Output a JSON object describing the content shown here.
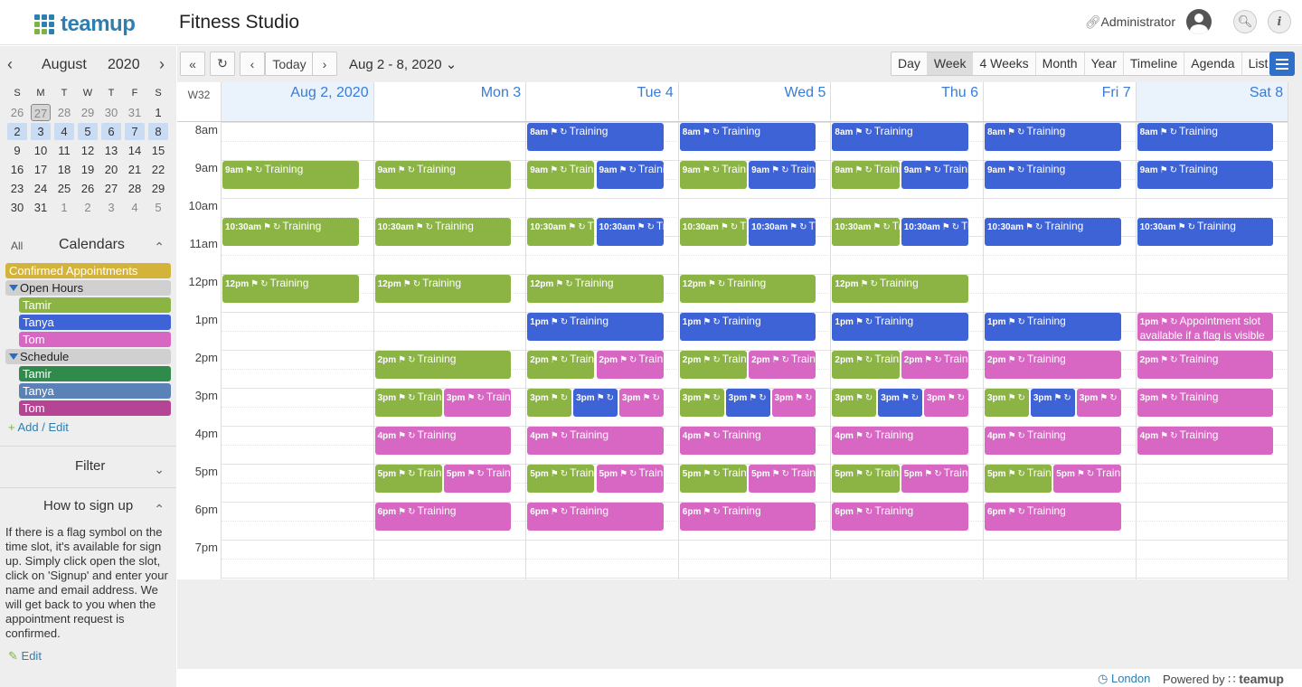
{
  "header": {
    "logo_text": "teamup",
    "app_title": "Fitness Studio",
    "user_label": "Administrator"
  },
  "minical": {
    "month": "August",
    "year": "2020",
    "dow": [
      "S",
      "M",
      "T",
      "W",
      "T",
      "F",
      "S"
    ],
    "weeks": [
      [
        "26",
        "27",
        "28",
        "29",
        "30",
        "31",
        "1"
      ],
      [
        "2",
        "3",
        "4",
        "5",
        "6",
        "7",
        "8"
      ],
      [
        "9",
        "10",
        "11",
        "12",
        "13",
        "14",
        "15"
      ],
      [
        "16",
        "17",
        "18",
        "19",
        "20",
        "21",
        "22"
      ],
      [
        "23",
        "24",
        "25",
        "26",
        "27",
        "28",
        "29"
      ],
      [
        "30",
        "31",
        "1",
        "2",
        "3",
        "4",
        "5"
      ]
    ]
  },
  "sidebar": {
    "all_label": "All",
    "calendars_title": "Calendars",
    "calendars": [
      {
        "label": "Confirmed Appointments",
        "color": "#d4b33a",
        "type": "cal"
      },
      {
        "label": "Open Hours",
        "type": "group"
      },
      {
        "label": "Tamir",
        "color": "#8bb444",
        "type": "sub"
      },
      {
        "label": "Tanya",
        "color": "#3d63d6",
        "type": "sub"
      },
      {
        "label": "Tom",
        "color": "#d866c3",
        "type": "sub"
      },
      {
        "label": "Schedule",
        "type": "group"
      },
      {
        "label": "Tamir",
        "color": "#2f8a4c",
        "type": "sub"
      },
      {
        "label": "Tanya",
        "color": "#5a82b6",
        "type": "sub"
      },
      {
        "label": "Tom",
        "color": "#b54494",
        "type": "sub"
      }
    ],
    "add_edit": "Add / Edit",
    "filter_title": "Filter",
    "signup_title": "How to sign up",
    "signup_text": "If there is a flag symbol on the time slot, it's available for sign up. Simply click open the slot, click on 'Signup' and enter your name and email address. We will get back to you when the appointment request is confirmed.",
    "edit_label": "Edit"
  },
  "toolbar": {
    "today": "Today",
    "date_range": "Aug 2 - 8, 2020",
    "views": [
      "Day",
      "Week",
      "4 Weeks",
      "Month",
      "Year",
      "Timeline",
      "Agenda",
      "List"
    ],
    "active_view": "Week"
  },
  "week": {
    "week_label": "W32",
    "days": [
      "Aug 2, 2020",
      "Mon 3",
      "Tue 4",
      "Wed 5",
      "Thu 6",
      "Fri 7",
      "Sat 8"
    ],
    "hours": [
      "8am",
      "9am",
      "10am",
      "11am",
      "12pm",
      "1pm",
      "2pm",
      "3pm",
      "4pm",
      "5pm",
      "6pm",
      "7pm"
    ]
  },
  "colors": {
    "green": "#8bb444",
    "blue": "#3d63d6",
    "pink": "#d866c3",
    "accent": "#2f6fc9"
  },
  "events": [
    {
      "day": 0,
      "start": 9,
      "end": 9.75,
      "col": 0,
      "cols": 1,
      "time": "9am",
      "title": "Training",
      "color": "green"
    },
    {
      "day": 0,
      "start": 10.5,
      "end": 11.25,
      "col": 0,
      "cols": 1,
      "time": "10:30am",
      "title": "Training",
      "color": "green"
    },
    {
      "day": 0,
      "start": 12,
      "end": 12.75,
      "col": 0,
      "cols": 1,
      "time": "12pm",
      "title": "Training",
      "color": "green"
    },
    {
      "day": 1,
      "start": 9,
      "end": 9.75,
      "col": 0,
      "cols": 1,
      "time": "9am",
      "title": "Training",
      "color": "green"
    },
    {
      "day": 1,
      "start": 10.5,
      "end": 11.25,
      "col": 0,
      "cols": 1,
      "time": "10:30am",
      "title": "Training",
      "color": "green"
    },
    {
      "day": 1,
      "start": 12,
      "end": 12.75,
      "col": 0,
      "cols": 1,
      "time": "12pm",
      "title": "Training",
      "color": "green"
    },
    {
      "day": 1,
      "start": 14,
      "end": 14.75,
      "col": 0,
      "cols": 1,
      "time": "2pm",
      "title": "Training",
      "color": "green"
    },
    {
      "day": 1,
      "start": 15,
      "end": 15.75,
      "col": 0,
      "cols": 2,
      "time": "3pm",
      "title": "Training",
      "color": "green",
      "wrap": true
    },
    {
      "day": 1,
      "start": 15,
      "end": 15.75,
      "col": 1,
      "cols": 2,
      "time": "3pm",
      "title": "Training",
      "color": "pink",
      "wrap": true
    },
    {
      "day": 1,
      "start": 16,
      "end": 16.75,
      "col": 0,
      "cols": 1,
      "time": "4pm",
      "title": "Training",
      "color": "pink"
    },
    {
      "day": 1,
      "start": 17,
      "end": 17.75,
      "col": 0,
      "cols": 2,
      "time": "5pm",
      "title": "Training",
      "color": "green",
      "wrap": true
    },
    {
      "day": 1,
      "start": 17,
      "end": 17.75,
      "col": 1,
      "cols": 2,
      "time": "5pm",
      "title": "Training",
      "color": "pink",
      "wrap": true
    },
    {
      "day": 1,
      "start": 18,
      "end": 18.75,
      "col": 0,
      "cols": 1,
      "time": "6pm",
      "title": "Training",
      "color": "pink"
    },
    {
      "day": 2,
      "start": 8,
      "end": 8.75,
      "col": 0,
      "cols": 1,
      "time": "8am",
      "title": "Training",
      "color": "blue"
    },
    {
      "day": 2,
      "start": 9,
      "end": 9.75,
      "col": 0,
      "cols": 2,
      "time": "9am",
      "title": "Training",
      "color": "green",
      "wrap": true
    },
    {
      "day": 2,
      "start": 9,
      "end": 9.75,
      "col": 1,
      "cols": 2,
      "time": "9am",
      "title": "Training",
      "color": "blue",
      "wrap": true
    },
    {
      "day": 2,
      "start": 10.5,
      "end": 11.25,
      "col": 0,
      "cols": 2,
      "time": "10:30am",
      "title": "Training",
      "color": "green",
      "wrap": true
    },
    {
      "day": 2,
      "start": 10.5,
      "end": 11.25,
      "col": 1,
      "cols": 2,
      "time": "10:30am",
      "title": "Training",
      "color": "blue",
      "wrap": true
    },
    {
      "day": 2,
      "start": 12,
      "end": 12.75,
      "col": 0,
      "cols": 1,
      "time": "12pm",
      "title": "Training",
      "color": "green"
    },
    {
      "day": 2,
      "start": 13,
      "end": 13.75,
      "col": 0,
      "cols": 1,
      "time": "1pm",
      "title": "Training",
      "color": "blue"
    },
    {
      "day": 2,
      "start": 14,
      "end": 14.75,
      "col": 0,
      "cols": 2,
      "time": "2pm",
      "title": "Training",
      "color": "green",
      "wrap": true
    },
    {
      "day": 2,
      "start": 14,
      "end": 14.75,
      "col": 1,
      "cols": 2,
      "time": "2pm",
      "title": "Training",
      "color": "pink",
      "wrap": true
    },
    {
      "day": 2,
      "start": 15,
      "end": 15.75,
      "col": 0,
      "cols": 3,
      "time": "3pm",
      "title": "",
      "color": "green",
      "wrap": true
    },
    {
      "day": 2,
      "start": 15,
      "end": 15.75,
      "col": 1,
      "cols": 3,
      "time": "3pm",
      "title": "",
      "color": "blue",
      "wrap": true
    },
    {
      "day": 2,
      "start": 15,
      "end": 15.75,
      "col": 2,
      "cols": 3,
      "time": "3pm",
      "title": "",
      "color": "pink",
      "wrap": true
    },
    {
      "day": 2,
      "start": 16,
      "end": 16.75,
      "col": 0,
      "cols": 1,
      "time": "4pm",
      "title": "Training",
      "color": "pink"
    },
    {
      "day": 2,
      "start": 17,
      "end": 17.75,
      "col": 0,
      "cols": 2,
      "time": "5pm",
      "title": "Training",
      "color": "green",
      "wrap": true
    },
    {
      "day": 2,
      "start": 17,
      "end": 17.75,
      "col": 1,
      "cols": 2,
      "time": "5pm",
      "title": "Training",
      "color": "pink",
      "wrap": true
    },
    {
      "day": 2,
      "start": 18,
      "end": 18.75,
      "col": 0,
      "cols": 1,
      "time": "6pm",
      "title": "Training",
      "color": "pink"
    },
    {
      "day": 3,
      "start": 8,
      "end": 8.75,
      "col": 0,
      "cols": 1,
      "time": "8am",
      "title": "Training",
      "color": "blue"
    },
    {
      "day": 3,
      "start": 9,
      "end": 9.75,
      "col": 0,
      "cols": 2,
      "time": "9am",
      "title": "Training",
      "color": "green",
      "wrap": true
    },
    {
      "day": 3,
      "start": 9,
      "end": 9.75,
      "col": 1,
      "cols": 2,
      "time": "9am",
      "title": "Training",
      "color": "blue",
      "wrap": true
    },
    {
      "day": 3,
      "start": 10.5,
      "end": 11.25,
      "col": 0,
      "cols": 2,
      "time": "10:30am",
      "title": "Training",
      "color": "green",
      "wrap": true
    },
    {
      "day": 3,
      "start": 10.5,
      "end": 11.25,
      "col": 1,
      "cols": 2,
      "time": "10:30am",
      "title": "Training",
      "color": "blue",
      "wrap": true
    },
    {
      "day": 3,
      "start": 12,
      "end": 12.75,
      "col": 0,
      "cols": 1,
      "time": "12pm",
      "title": "Training",
      "color": "green"
    },
    {
      "day": 3,
      "start": 13,
      "end": 13.75,
      "col": 0,
      "cols": 1,
      "time": "1pm",
      "title": "Training",
      "color": "blue"
    },
    {
      "day": 3,
      "start": 14,
      "end": 14.75,
      "col": 0,
      "cols": 2,
      "time": "2pm",
      "title": "Training",
      "color": "green",
      "wrap": true
    },
    {
      "day": 3,
      "start": 14,
      "end": 14.75,
      "col": 1,
      "cols": 2,
      "time": "2pm",
      "title": "Training",
      "color": "pink",
      "wrap": true
    },
    {
      "day": 3,
      "start": 15,
      "end": 15.75,
      "col": 0,
      "cols": 3,
      "time": "3pm",
      "title": "",
      "color": "green",
      "wrap": true
    },
    {
      "day": 3,
      "start": 15,
      "end": 15.75,
      "col": 1,
      "cols": 3,
      "time": "3pm",
      "title": "",
      "color": "blue",
      "wrap": true
    },
    {
      "day": 3,
      "start": 15,
      "end": 15.75,
      "col": 2,
      "cols": 3,
      "time": "3pm",
      "title": "",
      "color": "pink",
      "wrap": true
    },
    {
      "day": 3,
      "start": 16,
      "end": 16.75,
      "col": 0,
      "cols": 1,
      "time": "4pm",
      "title": "Training",
      "color": "pink"
    },
    {
      "day": 3,
      "start": 17,
      "end": 17.75,
      "col": 0,
      "cols": 2,
      "time": "5pm",
      "title": "Training",
      "color": "green",
      "wrap": true
    },
    {
      "day": 3,
      "start": 17,
      "end": 17.75,
      "col": 1,
      "cols": 2,
      "time": "5pm",
      "title": "Training",
      "color": "pink",
      "wrap": true
    },
    {
      "day": 3,
      "start": 18,
      "end": 18.75,
      "col": 0,
      "cols": 1,
      "time": "6pm",
      "title": "Training",
      "color": "pink"
    },
    {
      "day": 4,
      "start": 8,
      "end": 8.75,
      "col": 0,
      "cols": 1,
      "time": "8am",
      "title": "Training",
      "color": "blue"
    },
    {
      "day": 4,
      "start": 9,
      "end": 9.75,
      "col": 0,
      "cols": 2,
      "time": "9am",
      "title": "Training",
      "color": "green",
      "wrap": true
    },
    {
      "day": 4,
      "start": 9,
      "end": 9.75,
      "col": 1,
      "cols": 2,
      "time": "9am",
      "title": "Training",
      "color": "blue",
      "wrap": true
    },
    {
      "day": 4,
      "start": 10.5,
      "end": 11.25,
      "col": 0,
      "cols": 2,
      "time": "10:30am",
      "title": "Training",
      "color": "green",
      "wrap": true
    },
    {
      "day": 4,
      "start": 10.5,
      "end": 11.25,
      "col": 1,
      "cols": 2,
      "time": "10:30am",
      "title": "Training",
      "color": "blue",
      "wrap": true
    },
    {
      "day": 4,
      "start": 12,
      "end": 12.75,
      "col": 0,
      "cols": 1,
      "time": "12pm",
      "title": "Training",
      "color": "green"
    },
    {
      "day": 4,
      "start": 13,
      "end": 13.75,
      "col": 0,
      "cols": 1,
      "time": "1pm",
      "title": "Training",
      "color": "blue"
    },
    {
      "day": 4,
      "start": 14,
      "end": 14.75,
      "col": 0,
      "cols": 2,
      "time": "2pm",
      "title": "Training",
      "color": "green",
      "wrap": true
    },
    {
      "day": 4,
      "start": 14,
      "end": 14.75,
      "col": 1,
      "cols": 2,
      "time": "2pm",
      "title": "Training",
      "color": "pink",
      "wrap": true
    },
    {
      "day": 4,
      "start": 15,
      "end": 15.75,
      "col": 0,
      "cols": 3,
      "time": "3pm",
      "title": "",
      "color": "green",
      "wrap": true
    },
    {
      "day": 4,
      "start": 15,
      "end": 15.75,
      "col": 1,
      "cols": 3,
      "time": "3pm",
      "title": "",
      "color": "blue",
      "wrap": true
    },
    {
      "day": 4,
      "start": 15,
      "end": 15.75,
      "col": 2,
      "cols": 3,
      "time": "3pm",
      "title": "",
      "color": "pink",
      "wrap": true
    },
    {
      "day": 4,
      "start": 16,
      "end": 16.75,
      "col": 0,
      "cols": 1,
      "time": "4pm",
      "title": "Training",
      "color": "pink"
    },
    {
      "day": 4,
      "start": 17,
      "end": 17.75,
      "col": 0,
      "cols": 2,
      "time": "5pm",
      "title": "Training",
      "color": "green",
      "wrap": true
    },
    {
      "day": 4,
      "start": 17,
      "end": 17.75,
      "col": 1,
      "cols": 2,
      "time": "5pm",
      "title": "Training",
      "color": "pink",
      "wrap": true
    },
    {
      "day": 4,
      "start": 18,
      "end": 18.75,
      "col": 0,
      "cols": 1,
      "time": "6pm",
      "title": "Training",
      "color": "pink"
    },
    {
      "day": 5,
      "start": 8,
      "end": 8.75,
      "col": 0,
      "cols": 1,
      "time": "8am",
      "title": "Training",
      "color": "blue"
    },
    {
      "day": 5,
      "start": 9,
      "end": 9.75,
      "col": 0,
      "cols": 1,
      "time": "9am",
      "title": "Training",
      "color": "blue"
    },
    {
      "day": 5,
      "start": 10.5,
      "end": 11.25,
      "col": 0,
      "cols": 1,
      "time": "10:30am",
      "title": "Training",
      "color": "blue"
    },
    {
      "day": 5,
      "start": 13,
      "end": 13.75,
      "col": 0,
      "cols": 1,
      "time": "1pm",
      "title": "Training",
      "color": "blue"
    },
    {
      "day": 5,
      "start": 14,
      "end": 14.75,
      "col": 0,
      "cols": 1,
      "time": "2pm",
      "title": "Training",
      "color": "pink"
    },
    {
      "day": 5,
      "start": 15,
      "end": 15.75,
      "col": 0,
      "cols": 3,
      "time": "3pm",
      "title": "",
      "color": "green",
      "wrap": true
    },
    {
      "day": 5,
      "start": 15,
      "end": 15.75,
      "col": 1,
      "cols": 3,
      "time": "3pm",
      "title": "",
      "color": "blue",
      "wrap": true
    },
    {
      "day": 5,
      "start": 15,
      "end": 15.75,
      "col": 2,
      "cols": 3,
      "time": "3pm",
      "title": "",
      "color": "pink",
      "wrap": true
    },
    {
      "day": 5,
      "start": 16,
      "end": 16.75,
      "col": 0,
      "cols": 1,
      "time": "4pm",
      "title": "Training",
      "color": "pink"
    },
    {
      "day": 5,
      "start": 17,
      "end": 17.75,
      "col": 0,
      "cols": 2,
      "time": "5pm",
      "title": "Training",
      "color": "green",
      "wrap": true
    },
    {
      "day": 5,
      "start": 17,
      "end": 17.75,
      "col": 1,
      "cols": 2,
      "time": "5pm",
      "title": "Training",
      "color": "pink",
      "wrap": true
    },
    {
      "day": 5,
      "start": 18,
      "end": 18.75,
      "col": 0,
      "cols": 1,
      "time": "6pm",
      "title": "Training",
      "color": "pink"
    },
    {
      "day": 6,
      "start": 8,
      "end": 8.75,
      "col": 0,
      "cols": 1,
      "time": "8am",
      "title": "Training",
      "color": "blue"
    },
    {
      "day": 6,
      "start": 9,
      "end": 9.75,
      "col": 0,
      "cols": 1,
      "time": "9am",
      "title": "Training",
      "color": "blue"
    },
    {
      "day": 6,
      "start": 10.5,
      "end": 11.25,
      "col": 0,
      "cols": 1,
      "time": "10:30am",
      "title": "Training",
      "color": "blue"
    },
    {
      "day": 6,
      "start": 13,
      "end": 13.75,
      "col": 0,
      "cols": 1,
      "time": "1pm",
      "title": "Appointment slot available if a flag is visible",
      "color": "pink",
      "wrap": true
    },
    {
      "day": 6,
      "start": 14,
      "end": 14.75,
      "col": 0,
      "cols": 1,
      "time": "2pm",
      "title": "Training",
      "color": "pink"
    },
    {
      "day": 6,
      "start": 15,
      "end": 15.75,
      "col": 0,
      "cols": 1,
      "time": "3pm",
      "title": "Training",
      "color": "pink"
    },
    {
      "day": 6,
      "start": 16,
      "end": 16.75,
      "col": 0,
      "cols": 1,
      "time": "4pm",
      "title": "Training",
      "color": "pink"
    }
  ],
  "footer": {
    "timezone": "London",
    "powered_by": "Powered by",
    "brand": "teamup"
  }
}
